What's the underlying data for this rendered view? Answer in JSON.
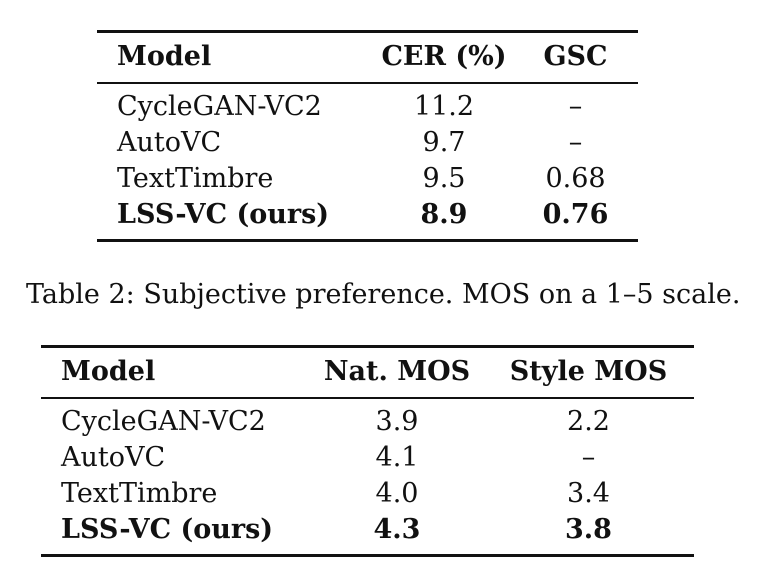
{
  "table1": {
    "headers": [
      "Model",
      "CER (%)",
      "GSC"
    ],
    "rows": [
      [
        "CycleGAN-VC2",
        "11.2",
        "–"
      ],
      [
        "AutoVC",
        "9.7",
        "–"
      ],
      [
        "TextTimbre",
        "9.5",
        "0.68"
      ],
      [
        "LSS-VC (ours)",
        "8.9",
        "0.76"
      ]
    ]
  },
  "caption2": "Table 2: Subjective preference. MOS on a 1–5 scale.",
  "table2": {
    "headers": [
      "Model",
      "Nat. MOS",
      "Style MOS"
    ],
    "rows": [
      [
        "CycleGAN-VC2",
        "3.9",
        "2.2"
      ],
      [
        "AutoVC",
        "4.1",
        "–"
      ],
      [
        "TextTimbre",
        "4.0",
        "3.4"
      ],
      [
        "LSS-VC (ours)",
        "4.3",
        "3.8"
      ]
    ]
  }
}
